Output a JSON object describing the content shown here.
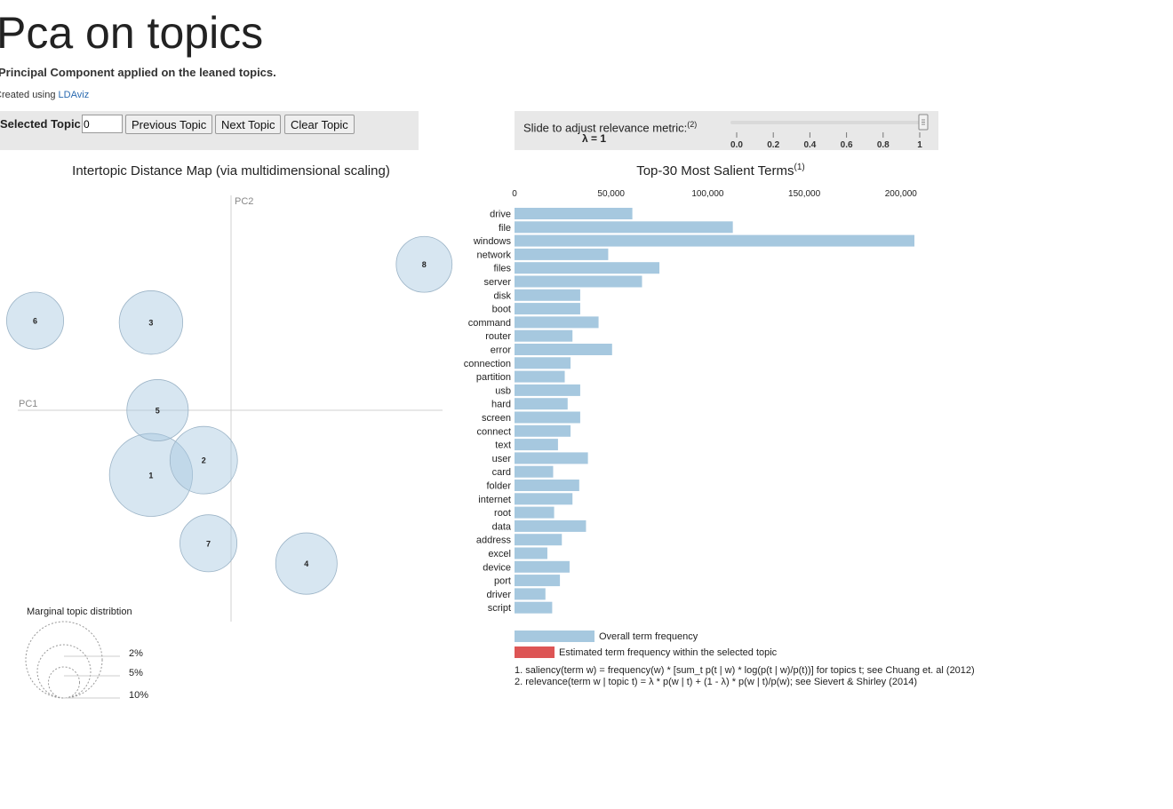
{
  "header": {
    "title": "Pca on topics",
    "subtitle": "Principal Component applied on the leaned topics.",
    "created_prefix": "Created using ",
    "created_link": "LDAviz"
  },
  "topic_controls": {
    "label": "Selected Topic:",
    "input_value": "0",
    "prev_label": "Previous Topic",
    "next_label": "Next Topic",
    "clear_label": "Clear Topic"
  },
  "relevance": {
    "label": "Slide to adjust relevance metric:",
    "label_sup": "(2)",
    "lambda_text": "λ = 1",
    "value": 1,
    "ticks": [
      "0.0",
      "0.2",
      "0.4",
      "0.6",
      "0.8",
      "1"
    ]
  },
  "colors": {
    "bubble_fill": "#a6c8df",
    "bar_overall": "#a6c8df",
    "bar_topic": "#dd5555",
    "panel_bg": "#e8e8e8"
  },
  "chart_data": [
    {
      "type": "scatter",
      "title": "Intertopic Distance Map (via multidimensional scaling)",
      "xlabel": "PC1",
      "ylabel": "PC2",
      "topics": [
        {
          "id": "1",
          "pc1": -0.085,
          "pc2": -0.07,
          "size_pct": 5.3
        },
        {
          "id": "2",
          "pc1": -0.029,
          "pc2": -0.054,
          "size_pct": 3.5
        },
        {
          "id": "3",
          "pc1": -0.085,
          "pc2": 0.095,
          "size_pct": 3.1
        },
        {
          "id": "4",
          "pc1": 0.08,
          "pc2": -0.166,
          "size_pct": 2.9
        },
        {
          "id": "5",
          "pc1": -0.078,
          "pc2": 0.0,
          "size_pct": 2.9
        },
        {
          "id": "6",
          "pc1": -0.208,
          "pc2": 0.097,
          "size_pct": 2.5
        },
        {
          "id": "7",
          "pc1": -0.024,
          "pc2": -0.144,
          "size_pct": 2.5
        },
        {
          "id": "8",
          "pc1": 0.205,
          "pc2": 0.158,
          "size_pct": 2.4
        }
      ],
      "legend": {
        "title": "Marginal topic distribtion",
        "entries": [
          "2%",
          "5%",
          "10%"
        ],
        "entry_values": [
          2,
          5,
          10
        ]
      }
    },
    {
      "type": "bar",
      "orientation": "horizontal",
      "title": "Top-30 Most Salient Terms",
      "title_sup": "(1)",
      "xlim": [
        0,
        210000
      ],
      "xticks": [
        0,
        50000,
        100000,
        150000,
        200000
      ],
      "xtick_labels": [
        "0",
        "50,000",
        "100,000",
        "150,000",
        "200,000"
      ],
      "categories": [
        "drive",
        "file",
        "windows",
        "network",
        "files",
        "server",
        "disk",
        "boot",
        "command",
        "router",
        "error",
        "connection",
        "partition",
        "usb",
        "hard",
        "screen",
        "connect",
        "text",
        "user",
        "card",
        "folder",
        "internet",
        "root",
        "data",
        "address",
        "excel",
        "device",
        "port",
        "driver",
        "script"
      ],
      "values": [
        61000,
        113000,
        207000,
        48500,
        75000,
        66000,
        34000,
        34000,
        43500,
        30000,
        50500,
        29000,
        26000,
        34000,
        27500,
        34000,
        29000,
        22500,
        38000,
        20000,
        33500,
        30000,
        20500,
        37000,
        24500,
        17000,
        28500,
        23500,
        16000,
        19500
      ],
      "legend": [
        "Overall term frequency",
        "Estimated term frequency within the selected topic"
      ],
      "footnotes": [
        "1. saliency(term w) = frequency(w) * [sum_t p(t | w) * log(p(t | w)/p(t))] for topics t; see Chuang et. al (2012)",
        "2. relevance(term w | topic t) = λ * p(w | t) + (1 - λ) * p(w | t)/p(w); see Sievert & Shirley (2014)"
      ]
    }
  ]
}
